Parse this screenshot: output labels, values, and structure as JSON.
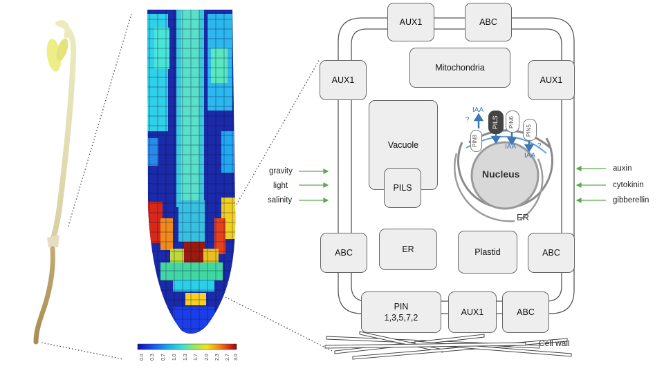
{
  "colorbar": {
    "ticks": [
      "0.0",
      "0.3",
      "0.7",
      "1.0",
      "1.3",
      "1.7",
      "2.0",
      "2.3",
      "2.7",
      "3.0"
    ],
    "colors": [
      "#1010a0",
      "#1b3ee8",
      "#1aa4f0",
      "#35e0d0",
      "#9ee85a",
      "#f0e020",
      "#f08a18",
      "#d82818",
      "#7a1010"
    ]
  },
  "organelles": {
    "aux1_top": "AUX1",
    "abc_top": "ABC",
    "mitochondria": "Mitochondria",
    "aux1_left": "AUX1",
    "aux1_right": "AUX1",
    "vacuole": "Vacuole",
    "pils_vacuole": "PILS",
    "abc_left": "ABC",
    "er_box": "ER",
    "plastid": "Plastid",
    "abc_right": "ABC",
    "pin_line1": "PIN",
    "pin_line2": "1,3,5,7,2",
    "aux1_bottom": "AUX1",
    "abc_bottom": "ABC"
  },
  "nucleus": {
    "label": "Nucleus",
    "er_label": "ER",
    "iaa_1": "IAA",
    "iaa_2": "IAA",
    "iaa_3": "IAA",
    "q_1": "?",
    "q_2": "?",
    "pin8": "PIN8",
    "pils": "PILS",
    "pin6": "PIN6",
    "pin5": "PIN5"
  },
  "stimuli_left": [
    "gravity",
    "light",
    "salinity"
  ],
  "stimuli_right": [
    "auxin",
    "cytokinin",
    "gibberellin"
  ],
  "cell_wall_label": "Cell wall",
  "colors": {
    "arrow_green": "#5aaa50",
    "pin_blue": "#3a78b8",
    "box_fill": "#eeeeee"
  }
}
